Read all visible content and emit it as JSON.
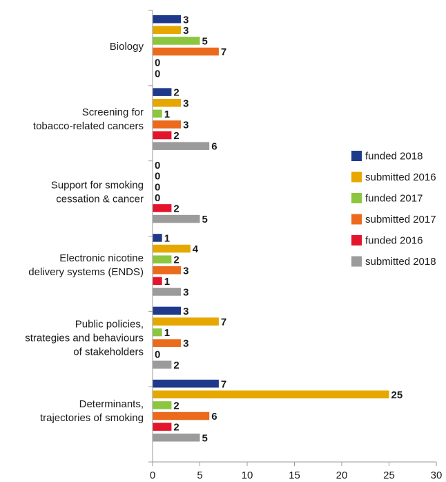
{
  "chart_data": {
    "type": "bar",
    "orientation": "horizontal",
    "title": "",
    "xlabel": "",
    "ylabel": "",
    "xlim": [
      0,
      30
    ],
    "xticks": [
      0,
      5,
      10,
      15,
      20,
      25,
      30
    ],
    "grid": false,
    "legend_position": "right",
    "categories": [
      [
        "Biology"
      ],
      [
        "Screening for",
        "tobacco-related cancers"
      ],
      [
        "Support for smoking",
        "cessation & cancer"
      ],
      [
        "Electronic nicotine",
        "delivery systems (ENDS)"
      ],
      [
        "Public policies,",
        "strategies and behaviours",
        "of stakeholders"
      ],
      [
        "Determinants,",
        "trajectories of smoking"
      ]
    ],
    "series": [
      {
        "name": "funded 2018",
        "color": "#1f3a8a",
        "values": [
          3,
          2,
          0,
          1,
          3,
          7
        ]
      },
      {
        "name": "submitted 2016",
        "color": "#e6a800",
        "values": [
          3,
          3,
          0,
          4,
          7,
          25
        ]
      },
      {
        "name": "funded 2017",
        "color": "#8cc63e",
        "values": [
          5,
          1,
          0,
          2,
          1,
          2
        ]
      },
      {
        "name": "submitted 2017",
        "color": "#ec6a1c",
        "values": [
          7,
          3,
          0,
          3,
          3,
          6
        ]
      },
      {
        "name": "funded 2016",
        "color": "#e3142b",
        "values": [
          0,
          2,
          2,
          1,
          0,
          2
        ]
      },
      {
        "name": "submitted 2018",
        "color": "#9b9b9b",
        "values": [
          0,
          6,
          5,
          3,
          2,
          5
        ]
      }
    ]
  }
}
